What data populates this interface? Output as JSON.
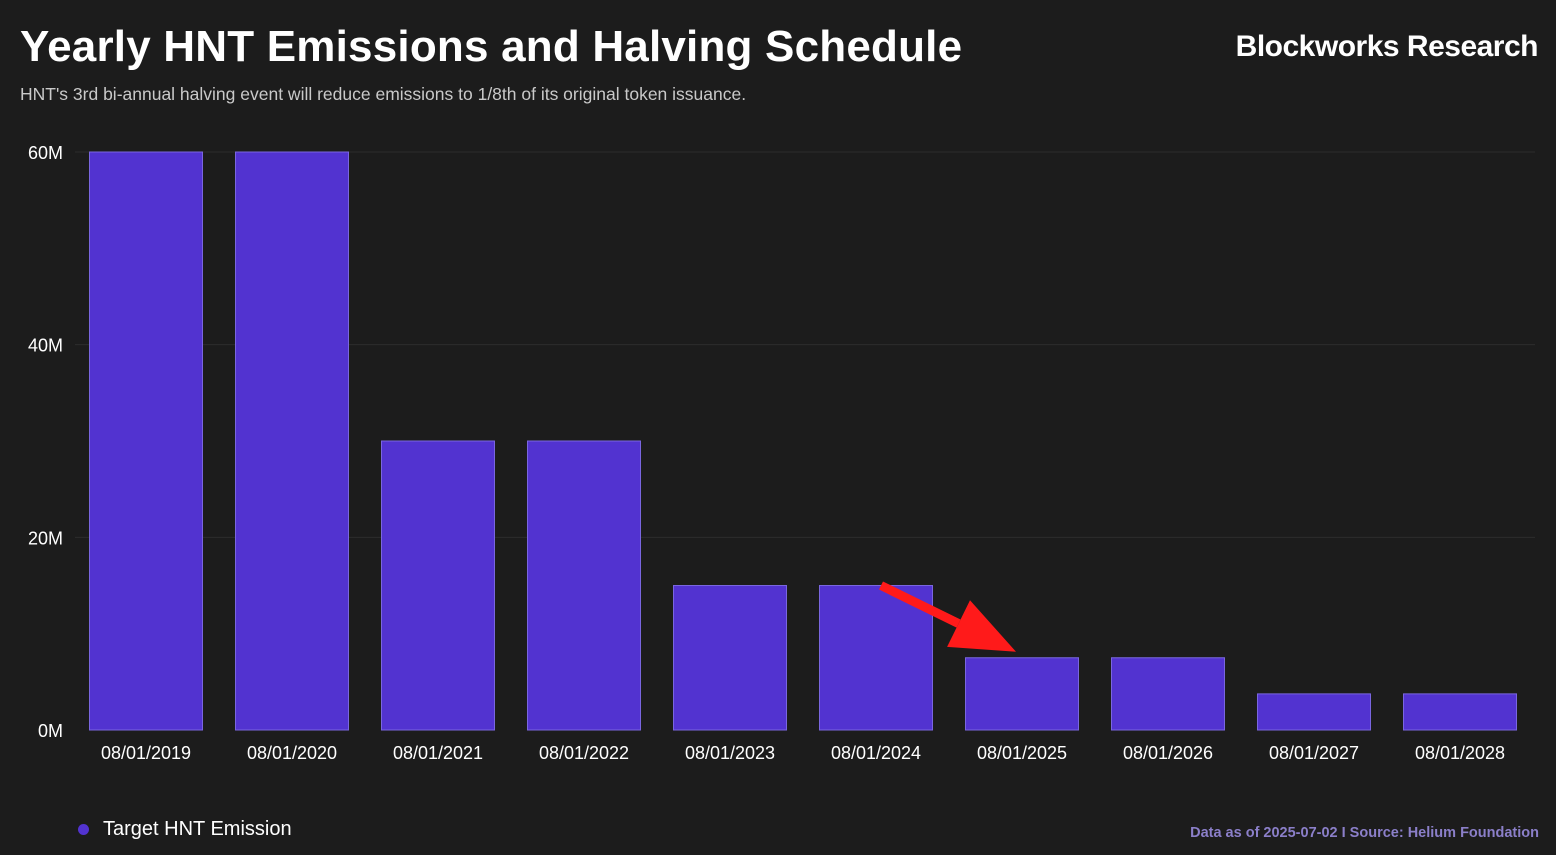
{
  "header": {
    "title": "Yearly HNT Emissions and Halving Schedule",
    "subtitle": "HNT's 3rd bi-annual halving event will reduce emissions to 1/8th of its original token issuance.",
    "brand": "Blockworks Research"
  },
  "footer": {
    "source": "Data as of 2025-07-02 I Source: Helium Foundation"
  },
  "colors": {
    "background": "#1c1c1c",
    "bar": "#5233d0",
    "bar_edge": "#7a66e0",
    "grid": "#2c2c2c",
    "arrow": "#ff1a1a"
  },
  "chart_data": {
    "type": "bar",
    "categories": [
      "08/01/2019",
      "08/01/2020",
      "08/01/2021",
      "08/01/2022",
      "08/01/2023",
      "08/01/2024",
      "08/01/2025",
      "08/01/2026",
      "08/01/2027",
      "08/01/2028"
    ],
    "series": [
      {
        "name": "Target HNT Emission",
        "values": [
          60000000,
          60000000,
          30000000,
          30000000,
          15000000,
          15000000,
          7500000,
          7500000,
          3750000,
          3750000
        ]
      }
    ],
    "yticks": [
      {
        "value": 0,
        "label": "0M"
      },
      {
        "value": 20000000,
        "label": "20M"
      },
      {
        "value": 40000000,
        "label": "40M"
      },
      {
        "value": 60000000,
        "label": "60M"
      }
    ],
    "ylim": [
      0,
      60000000
    ],
    "grid": true,
    "legend_position": "bottom-left",
    "annotation": {
      "type": "arrow",
      "from_category": "08/01/2024",
      "to_category": "08/01/2025",
      "color": "#ff1a1a"
    }
  }
}
